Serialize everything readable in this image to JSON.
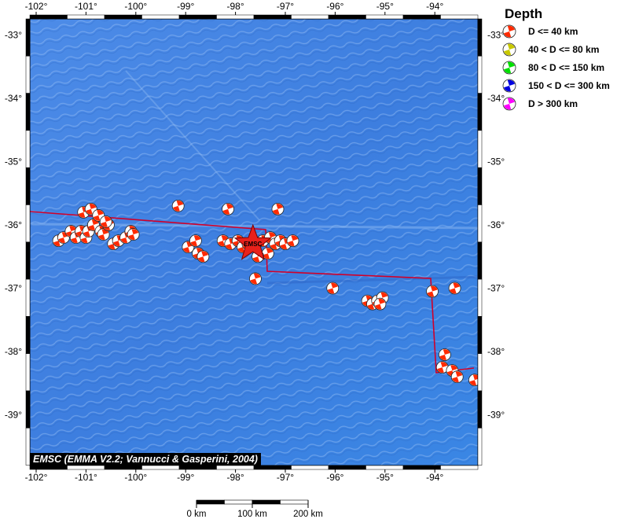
{
  "map": {
    "lon_ticks": [
      "-102°",
      "-101°",
      "-100°",
      "-99°",
      "-98°",
      "-97°",
      "-96°",
      "-95°",
      "-94°"
    ],
    "lat_ticks": [
      "-33°",
      "-34°",
      "-35°",
      "-36°",
      "-37°",
      "-38°",
      "-39°"
    ],
    "ocean_color": "#3f7fe0",
    "plate_boundary_color": "#d0002a",
    "epicenter": {
      "label": "EMSC",
      "lon": -97.65,
      "lat": -36.3
    },
    "events": [
      {
        "lon": -101.55,
        "lat": -36.25
      },
      {
        "lon": -101.45,
        "lat": -36.2
      },
      {
        "lon": -101.3,
        "lat": -36.1
      },
      {
        "lon": -101.2,
        "lat": -36.2
      },
      {
        "lon": -101.1,
        "lat": -36.1
      },
      {
        "lon": -101.0,
        "lat": -36.2
      },
      {
        "lon": -100.95,
        "lat": -36.1
      },
      {
        "lon": -100.85,
        "lat": -36.0
      },
      {
        "lon": -100.7,
        "lat": -36.1
      },
      {
        "lon": -100.65,
        "lat": -36.15
      },
      {
        "lon": -100.55,
        "lat": -36.0
      },
      {
        "lon": -100.45,
        "lat": -36.3
      },
      {
        "lon": -100.35,
        "lat": -36.25
      },
      {
        "lon": -100.2,
        "lat": -36.2
      },
      {
        "lon": -100.1,
        "lat": -36.1
      },
      {
        "lon": -100.05,
        "lat": -36.15
      },
      {
        "lon": -101.05,
        "lat": -35.8
      },
      {
        "lon": -100.9,
        "lat": -35.75
      },
      {
        "lon": -100.75,
        "lat": -35.85
      },
      {
        "lon": -100.6,
        "lat": -35.95
      },
      {
        "lon": -99.15,
        "lat": -35.7
      },
      {
        "lon": -98.95,
        "lat": -36.35
      },
      {
        "lon": -98.8,
        "lat": -36.25
      },
      {
        "lon": -98.75,
        "lat": -36.45
      },
      {
        "lon": -98.65,
        "lat": -36.5
      },
      {
        "lon": -98.25,
        "lat": -36.25
      },
      {
        "lon": -98.1,
        "lat": -36.3
      },
      {
        "lon": -97.95,
        "lat": -36.25
      },
      {
        "lon": -97.85,
        "lat": -36.35
      },
      {
        "lon": -97.75,
        "lat": -36.3
      },
      {
        "lon": -98.15,
        "lat": -35.75
      },
      {
        "lon": -97.45,
        "lat": -36.25
      },
      {
        "lon": -97.3,
        "lat": -36.2
      },
      {
        "lon": -97.2,
        "lat": -36.3
      },
      {
        "lon": -97.1,
        "lat": -36.25
      },
      {
        "lon": -97.0,
        "lat": -36.3
      },
      {
        "lon": -96.85,
        "lat": -36.25
      },
      {
        "lon": -97.35,
        "lat": -36.45
      },
      {
        "lon": -97.55,
        "lat": -36.5
      },
      {
        "lon": -97.15,
        "lat": -35.75
      },
      {
        "lon": -97.6,
        "lat": -36.85
      },
      {
        "lon": -96.05,
        "lat": -37.0
      },
      {
        "lon": -95.35,
        "lat": -37.2
      },
      {
        "lon": -95.25,
        "lat": -37.25
      },
      {
        "lon": -95.15,
        "lat": -37.2
      },
      {
        "lon": -95.05,
        "lat": -37.15
      },
      {
        "lon": -95.1,
        "lat": -37.25
      },
      {
        "lon": -94.05,
        "lat": -37.05
      },
      {
        "lon": -93.6,
        "lat": -37.0
      },
      {
        "lon": -93.8,
        "lat": -38.05
      },
      {
        "lon": -93.85,
        "lat": -38.25
      },
      {
        "lon": -93.65,
        "lat": -38.3
      },
      {
        "lon": -93.55,
        "lat": -38.4
      },
      {
        "lon": -93.2,
        "lat": -38.45
      }
    ],
    "credit": "EMSC (EMMA V2.2; Vannucci & Gasperini, 2004)"
  },
  "legend": {
    "title": "Depth",
    "items": [
      {
        "label": "D <= 40 km",
        "color": "#ff2a00"
      },
      {
        "label": "40 < D <= 80 km",
        "color": "#c8c800"
      },
      {
        "label": "80 < D <= 150 km",
        "color": "#00e000"
      },
      {
        "label": "150 < D <= 300 km",
        "color": "#0000e0"
      },
      {
        "label": "D > 300 km",
        "color": "#ff00ff"
      }
    ]
  },
  "scale_bar": {
    "labels": [
      "0 km",
      "100 km",
      "200 km"
    ]
  }
}
